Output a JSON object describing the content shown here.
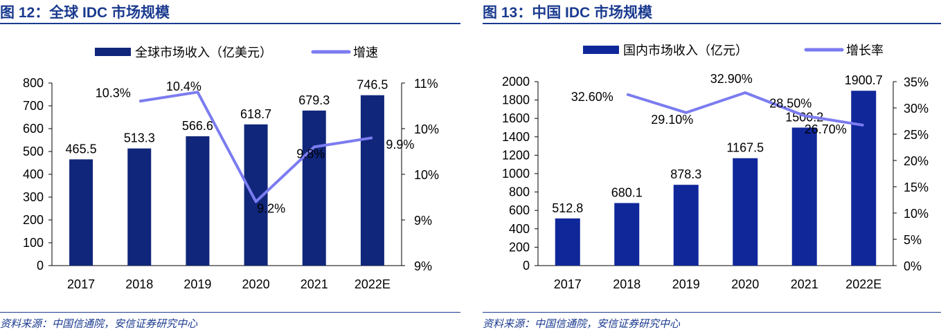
{
  "chart_data": [
    {
      "type": "bar",
      "title": "图 12：全球 IDC 市场规模",
      "source": "资料来源：中国信通院，安信证券研究中心",
      "categories": [
        "2017",
        "2018",
        "2019",
        "2020",
        "2021",
        "2022E"
      ],
      "series": [
        {
          "name": "全球市场收入（亿美元）",
          "axis": "left",
          "type": "bar",
          "values": [
            465.5,
            513.3,
            566.6,
            618.7,
            679.3,
            746.5
          ],
          "labels": [
            "465.5",
            "513.3",
            "566.6",
            "618.7",
            "679.3",
            "746.5"
          ],
          "color": "#10267a"
        },
        {
          "name": "增速",
          "axis": "right",
          "type": "line",
          "values": [
            null,
            10.3,
            10.4,
            9.2,
            9.8,
            9.9
          ],
          "labels": [
            "",
            "10.3%",
            "10.4%",
            "9.2%",
            "9.8%",
            "9.9%"
          ],
          "color": "#7b7cf0"
        }
      ],
      "ylim": [
        0,
        800
      ],
      "yticks": [
        "0",
        "100",
        "200",
        "300",
        "400",
        "500",
        "600",
        "700",
        "800"
      ],
      "y2lim": [
        8.5,
        10.5
      ],
      "y2ticks": [
        "9%",
        "9%",
        "10%",
        "10%",
        "11%"
      ]
    },
    {
      "type": "bar",
      "title": "图 13：中国 IDC 市场规模",
      "source": "资料来源：中国信通院，安信证券研究中心",
      "categories": [
        "2017",
        "2018",
        "2019",
        "2020",
        "2021",
        "2022E"
      ],
      "series": [
        {
          "name": "国内市场收入（亿元）",
          "axis": "left",
          "type": "bar",
          "values": [
            512.8,
            680.1,
            878.3,
            1167.5,
            1500.2,
            1900.7
          ],
          "labels": [
            "512.8",
            "680.1",
            "878.3",
            "1167.5",
            "1500.2",
            "1900.7"
          ],
          "color": "#10279a"
        },
        {
          "name": "增长率",
          "axis": "right",
          "type": "line",
          "values": [
            null,
            32.6,
            29.1,
            32.9,
            28.5,
            26.7
          ],
          "labels": [
            "",
            "32.60%",
            "29.10%",
            "32.90%",
            "28.50%",
            "26.70%"
          ],
          "color": "#7b7cf0"
        }
      ],
      "ylim": [
        0,
        2000
      ],
      "yticks": [
        "0",
        "200",
        "400",
        "600",
        "800",
        "1000",
        "1200",
        "1400",
        "1600",
        "1800",
        "2000"
      ],
      "y2lim": [
        0,
        35
      ],
      "y2ticks": [
        "0%",
        "5%",
        "10%",
        "15%",
        "20%",
        "25%",
        "30%",
        "35%"
      ]
    }
  ]
}
